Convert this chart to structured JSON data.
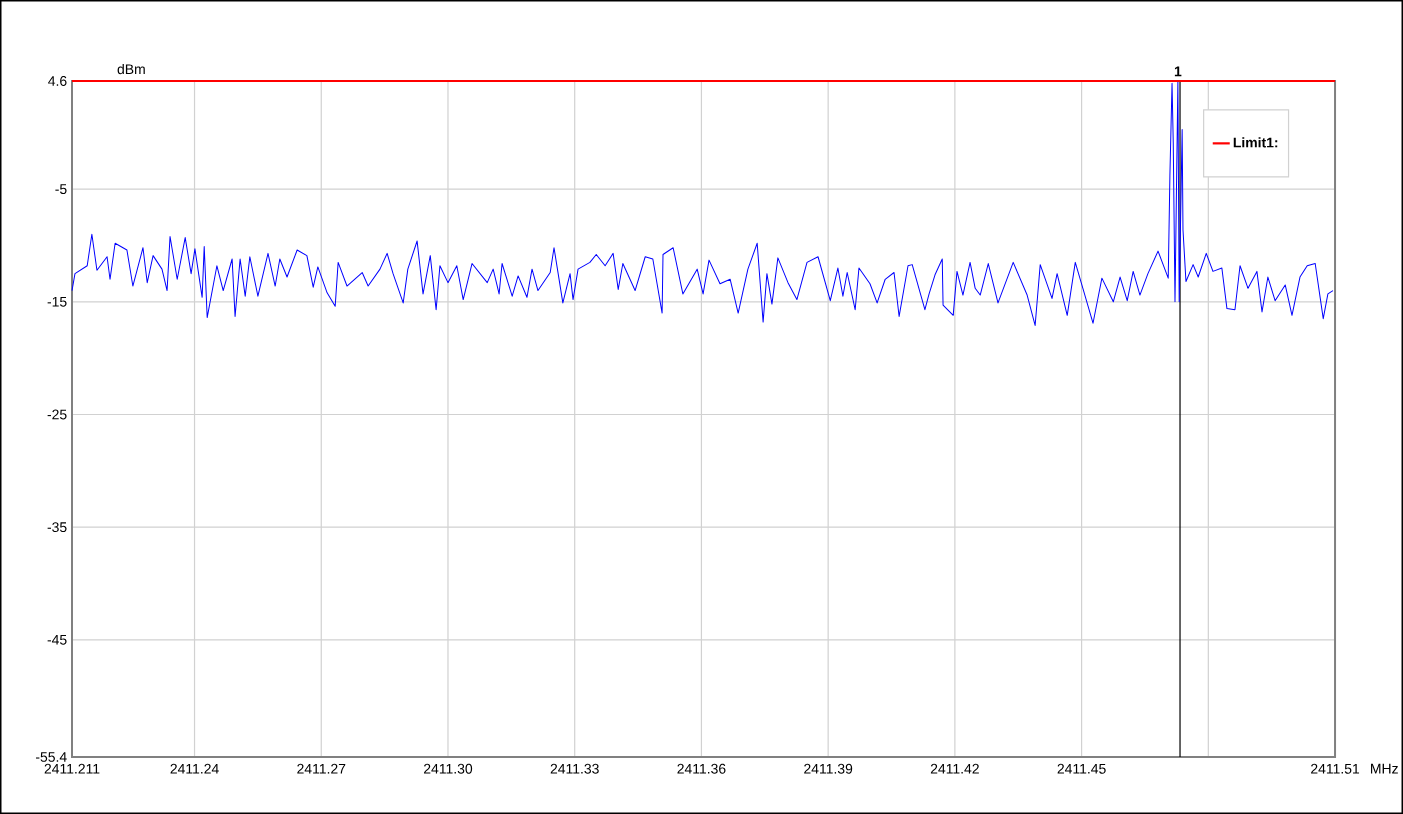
{
  "chart_data": {
    "type": "line",
    "xlabel": "MHz",
    "ylabel": "dBm",
    "xlim": [
      2411.211,
      2411.51
    ],
    "xticks": [
      {
        "value": 2411.211,
        "label": "2411.211"
      },
      {
        "value": 2411.24,
        "label": "2411.24"
      },
      {
        "value": 2411.27,
        "label": "2411.27"
      },
      {
        "value": 2411.3,
        "label": "2411.30"
      },
      {
        "value": 2411.33,
        "label": "2411.33"
      },
      {
        "value": 2411.36,
        "label": "2411.36"
      },
      {
        "value": 2411.39,
        "label": "2411.39"
      },
      {
        "value": 2411.42,
        "label": "2411.42"
      },
      {
        "value": 2411.45,
        "label": "2411.45"
      },
      {
        "value": 2411.48,
        "label": null
      },
      {
        "value": 2411.51,
        "label": "2411.51"
      }
    ],
    "ylim": [
      -55.4,
      4.6
    ],
    "yticks": [
      -55.4,
      -45,
      -35,
      -25,
      -15,
      -5,
      4.6
    ],
    "grid": true,
    "legend": "top right",
    "marker": "none",
    "line_style": "solid",
    "ref_lines": [
      {
        "axis": "x",
        "value": 2411.4733,
        "color": "#000000"
      }
    ],
    "annotations": [
      {
        "text": "1",
        "x": 2411.4728,
        "y": 4.6
      }
    ],
    "series": [
      {
        "color": "#0000ff",
        "x": [
          2411.211,
          2411.2117,
          2411.2146,
          2411.2157,
          2411.2169,
          2411.2193,
          2411.22,
          2411.2212,
          2411.224,
          2411.2254,
          2411.2278,
          2411.2288,
          2411.2302,
          2411.2323,
          2411.2335,
          2411.2342,
          2411.2359,
          2411.2378,
          2411.2392,
          2411.2401,
          2411.2418,
          2411.2423,
          2411.243,
          2411.2453,
          2411.2468,
          2411.2489,
          2411.2496,
          2411.2508,
          2411.252,
          2411.2531,
          2411.255,
          2411.2574,
          2411.2591,
          2411.2602,
          2411.2619,
          2411.2643,
          2411.2666,
          2411.2681,
          2411.2692,
          2411.2714,
          2411.2733,
          2411.274,
          2411.2761,
          2411.2797,
          2411.2811,
          2411.2839,
          2411.2856,
          2411.287,
          2411.2894,
          2411.2905,
          2411.2927,
          2411.2941,
          2411.2958,
          2411.2972,
          2411.2981,
          2411.3,
          2411.3021,
          2411.3036,
          2411.3057,
          2411.3093,
          2411.3107,
          2411.3121,
          2411.3128,
          2411.3152,
          2411.3166,
          2411.3187,
          2411.3199,
          2411.3213,
          2411.3242,
          2411.3251,
          2411.3272,
          2411.3289,
          2411.3296,
          2411.3308,
          2411.3336,
          2411.3351,
          2411.3372,
          2411.3391,
          2411.3403,
          2411.3414,
          2411.3443,
          2411.3467,
          2411.3485,
          2411.3507,
          2411.3509,
          2411.3533,
          2411.3556,
          2411.359,
          2411.3604,
          2411.3618,
          2411.3644,
          2411.3668,
          2411.3687,
          2411.371,
          2411.3732,
          2411.3746,
          2411.3755,
          2411.3767,
          2411.3781,
          2411.3805,
          2411.3826,
          2411.385,
          2411.3876,
          2411.3905,
          2411.3923,
          2411.3935,
          2411.3945,
          2411.3964,
          2411.3973,
          2411.3999,
          2411.4016,
          2411.4035,
          2411.4056,
          2411.4068,
          2411.4089,
          2411.4099,
          2411.4129,
          2411.4139,
          2411.4153,
          2411.417,
          2411.4172,
          2411.4196,
          2411.4205,
          2411.4219,
          2411.4236,
          2411.4248,
          2411.426,
          2411.4279,
          2411.4302,
          2411.4338,
          2411.4371,
          2411.439,
          2411.4402,
          2411.443,
          2411.4442,
          2411.4466,
          2411.4485,
          2411.4503,
          2411.4527,
          2411.4548,
          2411.4575,
          2411.4591,
          2411.4608,
          2411.4622,
          2411.4638,
          2411.4657,
          2411.4681,
          2411.4705,
          2411.4709,
          2411.4714,
          2411.4717,
          2411.4721,
          2411.4728,
          2411.4731,
          2411.4738,
          2411.474,
          2411.4747,
          2411.4764,
          2411.4776,
          2411.4795,
          2411.4811,
          2411.4832,
          2411.4844,
          2411.4863,
          2411.4875,
          2411.4894,
          2411.4915,
          2411.4927,
          2411.4941,
          2411.4958,
          2411.4982,
          2411.4998,
          2411.5017,
          2411.5034,
          2411.5053,
          2411.5065,
          2411.5072,
          2411.5083,
          2411.5095
        ],
        "values": [
          -14.0,
          -12.5,
          -11.8,
          -9.0,
          -12.2,
          -11.0,
          -13.0,
          -9.8,
          -10.4,
          -13.6,
          -10.2,
          -13.3,
          -10.9,
          -12.1,
          -14.0,
          -9.2,
          -13.0,
          -9.3,
          -12.5,
          -10.3,
          -14.6,
          -10.1,
          -16.4,
          -11.8,
          -14.0,
          -11.2,
          -16.3,
          -11.2,
          -14.5,
          -11.0,
          -14.5,
          -10.7,
          -13.6,
          -11.2,
          -12.8,
          -10.4,
          -10.9,
          -13.7,
          -11.9,
          -14.2,
          -15.4,
          -11.5,
          -13.6,
          -12.4,
          -13.6,
          -12.1,
          -10.7,
          -12.5,
          -15.1,
          -12.1,
          -9.6,
          -14.3,
          -10.9,
          -15.7,
          -11.8,
          -13.3,
          -11.8,
          -14.8,
          -11.6,
          -13.3,
          -12.1,
          -14.3,
          -11.6,
          -14.5,
          -12.7,
          -14.6,
          -12.1,
          -14.0,
          -12.4,
          -10.2,
          -15.1,
          -12.5,
          -14.8,
          -12.1,
          -11.5,
          -10.8,
          -11.8,
          -10.7,
          -13.9,
          -11.6,
          -14.0,
          -11.0,
          -11.2,
          -16.0,
          -10.8,
          -10.2,
          -14.3,
          -12.1,
          -14.3,
          -11.3,
          -13.4,
          -13.0,
          -16.0,
          -12.1,
          -9.8,
          -16.8,
          -12.5,
          -15.2,
          -11.1,
          -13.3,
          -14.8,
          -11.5,
          -11.0,
          -14.9,
          -12.0,
          -14.5,
          -12.4,
          -15.7,
          -12.0,
          -13.4,
          -15.1,
          -13.0,
          -12.4,
          -16.3,
          -11.8,
          -11.7,
          -15.7,
          -14.3,
          -12.6,
          -11.2,
          -15.3,
          -16.2,
          -12.3,
          -14.4,
          -11.5,
          -13.8,
          -14.4,
          -11.6,
          -15.1,
          -11.5,
          -14.4,
          -17.1,
          -11.7,
          -14.7,
          -12.5,
          -16.2,
          -11.5,
          -13.8,
          -16.9,
          -12.9,
          -15.0,
          -12.8,
          -14.9,
          -12.3,
          -14.4,
          -12.5,
          -10.5,
          -12.9,
          -3.8,
          4.4,
          -0.9,
          -15.0,
          4.6,
          -15.0,
          0.3,
          -8.6,
          -13.2,
          -11.7,
          -12.8,
          -10.7,
          -12.3,
          -12.0,
          -15.6,
          -15.7,
          -11.8,
          -13.8,
          -12.3,
          -15.9,
          -12.8,
          -14.9,
          -13.5,
          -16.2,
          -12.8,
          -11.8,
          -11.6,
          -14.7,
          -16.5,
          -14.3,
          -14.0
        ]
      },
      {
        "name": "Limit1:",
        "color": "#ff0000",
        "x": [
          2411.211,
          2411.51
        ],
        "values": [
          4.6,
          4.6
        ]
      }
    ]
  }
}
